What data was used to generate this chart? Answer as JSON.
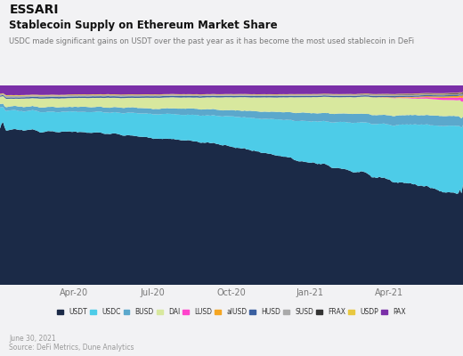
{
  "title": "Stablecoin Supply on Ethereum Market Share",
  "subtitle": "USDC made significant gains on USDT over the past year as it has become the most used stablecoin in DeFi",
  "brand": "ESSARI",
  "footer_date": "June 30, 2021",
  "footer_source": "Source: DeFi Metrics, Dune Analytics",
  "background_color": "#f0f0f2",
  "chart_bg": "#f0f0f2",
  "series": [
    {
      "name": "USDT",
      "color": "#1b2a47"
    },
    {
      "name": "USDC",
      "color": "#4dcce8"
    },
    {
      "name": "BUSD",
      "color": "#5ba8cc"
    },
    {
      "name": "DAI",
      "color": "#d8e89e"
    },
    {
      "name": "LUSD",
      "color": "#ff44cc"
    },
    {
      "name": "alUSD",
      "color": "#f5a623"
    },
    {
      "name": "HUSD",
      "color": "#3a5fa0"
    },
    {
      "name": "SUSD",
      "color": "#aaaaaa"
    },
    {
      "name": "FRAX",
      "color": "#333333"
    },
    {
      "name": "USDP",
      "color": "#e8c840"
    },
    {
      "name": "PAX",
      "color": "#7b2fa8"
    }
  ],
  "x_tick_labels": [
    "Apr-20",
    "Jul-20",
    "Oct-20",
    "Jan-21",
    "Apr-21"
  ],
  "x_tick_positions": [
    0.16,
    0.33,
    0.5,
    0.67,
    0.84
  ]
}
